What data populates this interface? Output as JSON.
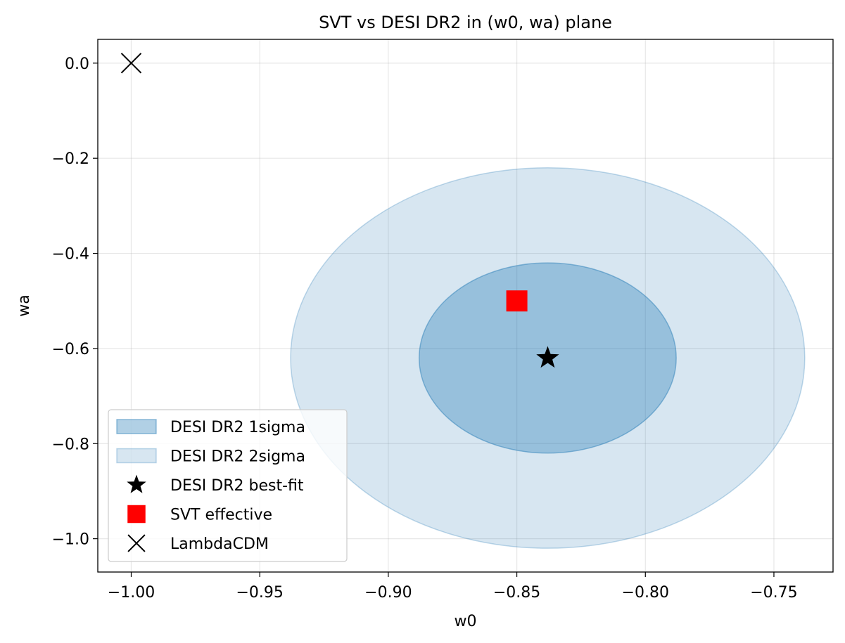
{
  "chart_data": {
    "type": "scatter",
    "title": "SVT vs DESI DR2 in (w0, wa) plane",
    "xlabel": "w0",
    "ylabel": "wa",
    "xlim": [
      -1.013,
      -0.727
    ],
    "ylim": [
      -1.07,
      0.05
    ],
    "grid": true,
    "legend_position": "lower-left",
    "x_ticks": [
      -1.0,
      -0.95,
      -0.9,
      -0.85,
      -0.8,
      -0.75
    ],
    "x_tick_labels": [
      "−1.00",
      "−0.95",
      "−0.90",
      "−0.85",
      "−0.80",
      "−0.75"
    ],
    "y_ticks": [
      0.0,
      -0.2,
      -0.4,
      -0.6,
      -0.8,
      -1.0
    ],
    "y_tick_labels": [
      "0.0",
      "−0.2",
      "−0.4",
      "−0.6",
      "−0.8",
      "−1.0"
    ],
    "regions": [
      {
        "name": "DESI DR2 2sigma",
        "center": [
          -0.838,
          -0.62
        ],
        "semi_x": 0.1,
        "semi_y": 0.4,
        "color": "#1f77b4",
        "alpha": 0.18
      },
      {
        "name": "DESI DR2 1sigma",
        "center": [
          -0.838,
          -0.62
        ],
        "semi_x": 0.05,
        "semi_y": 0.2,
        "color": "#1f77b4",
        "alpha": 0.35
      }
    ],
    "points": [
      {
        "name": "DESI DR2 best-fit",
        "x": -0.838,
        "y": -0.62,
        "marker": "star",
        "color": "#000000"
      },
      {
        "name": "SVT effective",
        "x": -0.85,
        "y": -0.5,
        "marker": "square",
        "color": "#ff0000"
      },
      {
        "name": "LambdaCDM",
        "x": -1.0,
        "y": 0.0,
        "marker": "x",
        "color": "#000000"
      }
    ],
    "legend": [
      {
        "label": "DESI DR2 1sigma",
        "kind": "patch",
        "color": "#1f77b4",
        "alpha": 0.35
      },
      {
        "label": "DESI DR2 2sigma",
        "kind": "patch",
        "color": "#1f77b4",
        "alpha": 0.18
      },
      {
        "label": "DESI DR2 best-fit",
        "kind": "star",
        "color": "#000000"
      },
      {
        "label": "SVT effective",
        "kind": "square",
        "color": "#ff0000"
      },
      {
        "label": "LambdaCDM",
        "kind": "x",
        "color": "#000000"
      }
    ]
  }
}
